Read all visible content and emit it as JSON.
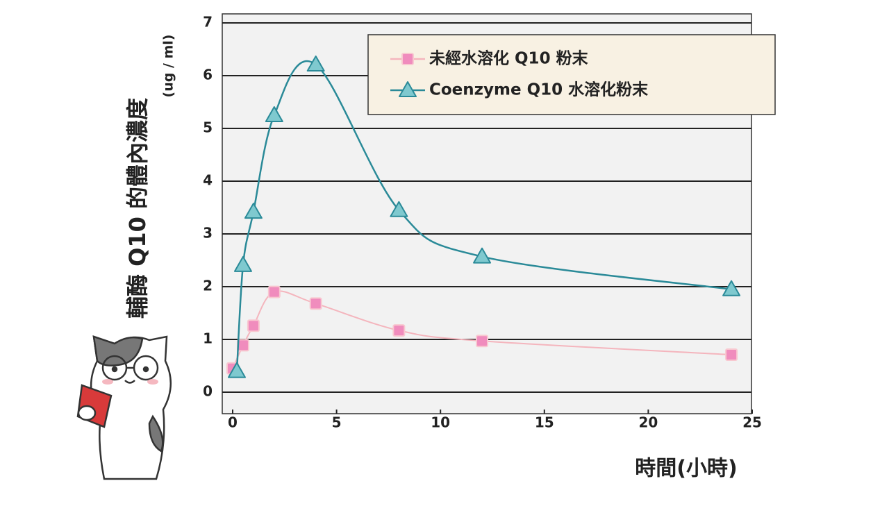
{
  "chart_data": {
    "type": "line",
    "y_label": "輔酶 Q10 的體內濃度",
    "y_unit": "(ug / ml)",
    "x_label": "時間(小時)",
    "xlim": [
      0,
      25
    ],
    "ylim": [
      0,
      7
    ],
    "xticks": [
      0,
      5,
      10,
      15,
      20,
      25
    ],
    "yticks": [
      0,
      1,
      2,
      3,
      4,
      5,
      6,
      7
    ],
    "grid": true,
    "series": [
      {
        "name": "未經水溶化 Q10 粉末",
        "color": "#f4b5bd",
        "marker_color": "#f08cbd",
        "marker": "square",
        "x": [
          0,
          0.5,
          1,
          2,
          4,
          8,
          12,
          24
        ],
        "values": [
          0.45,
          0.89,
          1.26,
          1.9,
          1.68,
          1.17,
          0.97,
          0.71
        ]
      },
      {
        "name": "Coenzyme Q10 水溶化粉末",
        "color": "#2a8a98",
        "marker_color": "#7fc9cf",
        "marker": "triangle",
        "x": [
          0.2,
          0.5,
          1,
          2,
          4,
          8,
          12,
          24
        ],
        "values": [
          0.4,
          2.41,
          3.42,
          5.25,
          6.21,
          3.45,
          2.57,
          1.95
        ]
      }
    ],
    "legend": "upper right"
  }
}
